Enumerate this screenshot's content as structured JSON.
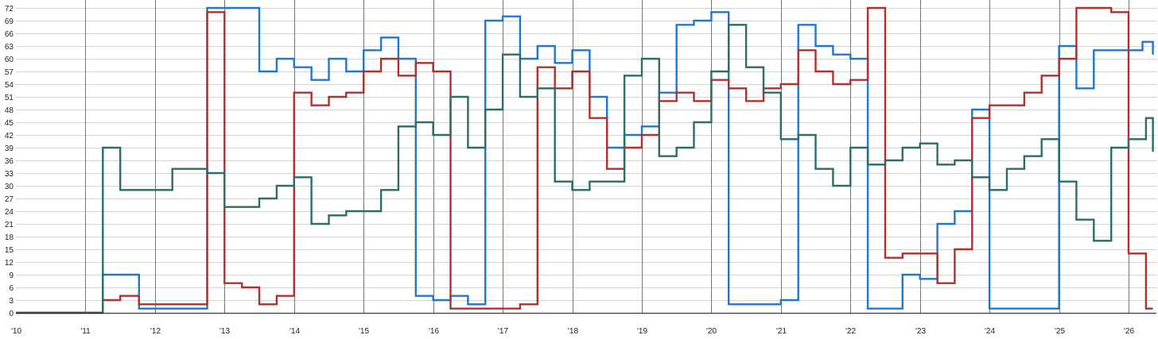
{
  "chart_data": {
    "type": "line",
    "title": "",
    "xlabel": "",
    "ylabel": "",
    "step": true,
    "grid": true,
    "xlim": [
      2010.0,
      2026.4
    ],
    "ylim": [
      0,
      72
    ],
    "y_ticks": [
      0,
      3,
      6,
      9,
      12,
      15,
      18,
      21,
      24,
      27,
      30,
      33,
      36,
      39,
      42,
      45,
      48,
      51,
      54,
      57,
      60,
      63,
      66,
      69,
      72
    ],
    "x_ticks": [
      {
        "value": 2010,
        "label": "'10"
      },
      {
        "value": 2011,
        "label": "'11"
      },
      {
        "value": 2012,
        "label": "'12"
      },
      {
        "value": 2013,
        "label": "'13"
      },
      {
        "value": 2014,
        "label": "'14"
      },
      {
        "value": 2015,
        "label": "'15"
      },
      {
        "value": 2016,
        "label": "'16"
      },
      {
        "value": 2017,
        "label": "'17"
      },
      {
        "value": 2018,
        "label": "'18"
      },
      {
        "value": 2019,
        "label": "'19"
      },
      {
        "value": 2020,
        "label": "'20"
      },
      {
        "value": 2021,
        "label": "'21"
      },
      {
        "value": 2022,
        "label": "'22"
      },
      {
        "value": 2023,
        "label": "'23"
      },
      {
        "value": 2024,
        "label": "'24"
      },
      {
        "value": 2025,
        "label": "'25"
      },
      {
        "value": 2026,
        "label": "'26"
      }
    ],
    "series": [
      {
        "color": "#1f77d0",
        "x": [
          2010.0,
          2011.25,
          2011.77,
          2012.75,
          2013.5,
          2013.75,
          2014.0,
          2014.25,
          2014.5,
          2014.75,
          2015.0,
          2015.25,
          2015.5,
          2015.75,
          2016.0,
          2016.25,
          2016.5,
          2016.75,
          2017.0,
          2017.25,
          2017.5,
          2017.75,
          2018.0,
          2018.25,
          2018.5,
          2018.75,
          2019.0,
          2019.25,
          2019.5,
          2019.75,
          2020.0,
          2020.25,
          2021.0,
          2021.25,
          2021.5,
          2021.75,
          2022.0,
          2022.25,
          2022.75,
          2023.0,
          2023.25,
          2023.5,
          2023.75,
          2024.0,
          2025.0,
          2025.25,
          2025.5,
          2026.0,
          2026.2,
          2026.35
        ],
        "values": [
          0,
          9,
          1,
          72,
          57,
          60,
          58,
          55,
          60,
          57,
          62,
          65,
          60,
          4,
          3,
          4,
          2,
          69,
          70,
          60,
          63,
          59,
          62,
          51,
          39,
          42,
          44,
          52,
          68,
          69,
          71,
          2,
          3,
          68,
          63,
          61,
          60,
          1,
          9,
          8,
          21,
          24,
          48,
          1,
          63,
          53,
          62,
          62,
          64,
          61
        ]
      },
      {
        "color": "#b2302b",
        "x": [
          2010.0,
          2011.25,
          2011.5,
          2011.77,
          2012.75,
          2013.0,
          2013.25,
          2013.5,
          2013.75,
          2014.0,
          2014.25,
          2014.5,
          2014.75,
          2015.0,
          2015.25,
          2015.5,
          2015.75,
          2016.0,
          2016.25,
          2016.5,
          2017.0,
          2017.25,
          2017.5,
          2017.75,
          2018.0,
          2018.25,
          2018.5,
          2018.75,
          2019.0,
          2019.25,
          2019.5,
          2019.75,
          2020.0,
          2020.25,
          2020.5,
          2020.75,
          2021.0,
          2021.25,
          2021.5,
          2021.75,
          2022.0,
          2022.25,
          2022.5,
          2022.75,
          2023.0,
          2023.25,
          2023.5,
          2023.75,
          2024.0,
          2024.5,
          2024.75,
          2025.0,
          2025.25,
          2025.75,
          2026.0,
          2026.25,
          2026.35
        ],
        "values": [
          0,
          3,
          4,
          2,
          71,
          7,
          6,
          2,
          4,
          52,
          49,
          51,
          52,
          57,
          60,
          56,
          59,
          57,
          1,
          1,
          1,
          2,
          58,
          53,
          57,
          46,
          34,
          39,
          42,
          50,
          52,
          50,
          55,
          53,
          50,
          53,
          54,
          62,
          57,
          54,
          55,
          72,
          13,
          14,
          14,
          7,
          15,
          46,
          49,
          52,
          56,
          60,
          72,
          71,
          14,
          1,
          1
        ]
      },
      {
        "color": "#2a6e66",
        "x": [
          2010.0,
          2011.25,
          2011.5,
          2011.77,
          2012.25,
          2012.75,
          2013.0,
          2013.5,
          2013.75,
          2014.0,
          2014.25,
          2014.5,
          2014.75,
          2015.25,
          2015.5,
          2015.75,
          2016.0,
          2016.25,
          2016.5,
          2016.75,
          2017.0,
          2017.25,
          2017.5,
          2017.75,
          2018.0,
          2018.25,
          2018.75,
          2019.0,
          2019.25,
          2019.5,
          2019.75,
          2020.0,
          2020.25,
          2020.5,
          2020.75,
          2021.0,
          2021.25,
          2021.5,
          2021.75,
          2022.0,
          2022.25,
          2022.5,
          2022.75,
          2023.0,
          2023.25,
          2023.5,
          2023.75,
          2024.0,
          2024.25,
          2024.5,
          2024.75,
          2025.0,
          2025.25,
          2025.5,
          2025.75,
          2026.0,
          2026.25,
          2026.35
        ],
        "values": [
          0,
          39,
          29,
          29,
          34,
          33,
          25,
          27,
          30,
          32,
          21,
          23,
          24,
          29,
          44,
          45,
          42,
          51,
          39,
          48,
          61,
          51,
          53,
          31,
          29,
          31,
          56,
          60,
          37,
          39,
          45,
          57,
          68,
          58,
          52,
          41,
          42,
          34,
          30,
          39,
          35,
          36,
          39,
          40,
          35,
          36,
          32,
          29,
          34,
          37,
          41,
          31,
          22,
          17,
          39,
          41,
          46,
          38
        ]
      }
    ]
  }
}
